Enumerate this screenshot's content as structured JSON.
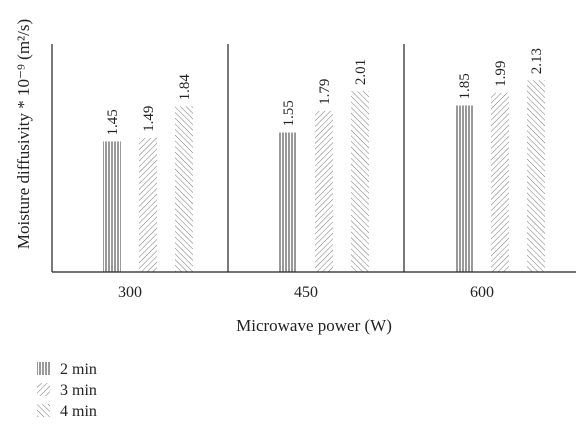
{
  "chart_data": {
    "type": "bar",
    "categories": [
      "300",
      "450",
      "600"
    ],
    "series": [
      {
        "name": "2 min",
        "values": [
          1.45,
          1.55,
          1.85
        ],
        "pattern": "vertical"
      },
      {
        "name": "3 min",
        "values": [
          1.49,
          1.79,
          1.99
        ],
        "pattern": "diagonal-down"
      },
      {
        "name": "4 min",
        "values": [
          1.84,
          2.01,
          2.13
        ],
        "pattern": "diagonal-up"
      }
    ],
    "value_labels": [
      [
        "1.45",
        "1.49",
        "1.84"
      ],
      [
        "1.55",
        "1.79",
        "2.01"
      ],
      [
        "1.85",
        "1.99",
        "2.13"
      ]
    ],
    "xlabel": "Microwave power (W)",
    "ylabel": "Moisture diffusivity * 10⁻⁹ (m²/s)",
    "ylim": [
      0,
      2.4
    ],
    "grid": false,
    "legend_position": "bottom-left",
    "colors": {
      "ink": "#222222",
      "hatch": "#555555"
    }
  }
}
